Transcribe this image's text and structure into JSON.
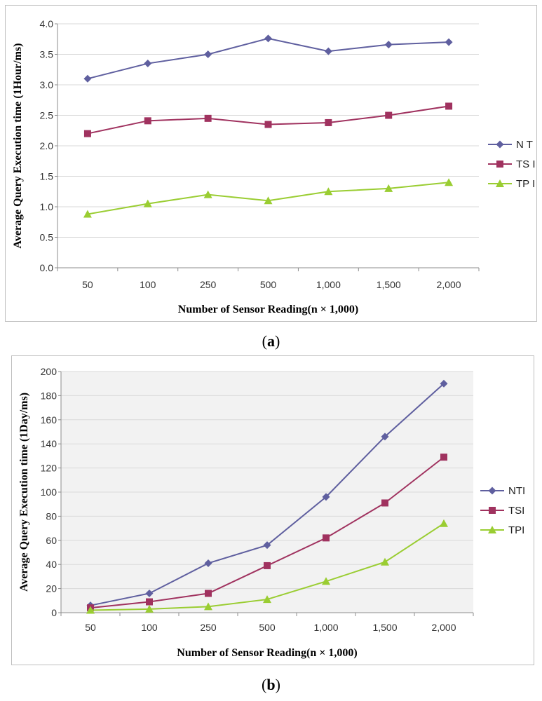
{
  "figure": {
    "captions": [
      "(a)",
      "(b)"
    ],
    "caption_letters": [
      "a",
      "b"
    ]
  },
  "chart_data": [
    {
      "type": "line",
      "panel": "a",
      "title": "",
      "xlabel": "Number of Sensor Reading(n × 1,000)",
      "ylabel": "Average Query Execution time (1Hour/ms)",
      "categories": [
        "50",
        "100",
        "250",
        "500",
        "1,000",
        "1,500",
        "2,000"
      ],
      "ylim": [
        0,
        4.0
      ],
      "yticks": [
        "0.0",
        "0.5",
        "1.0",
        "1.5",
        "2.0",
        "2.5",
        "3.0",
        "3.5",
        "4.0"
      ],
      "grid": true,
      "legend": "right",
      "plot_bg": "#ffffff",
      "series": [
        {
          "name": "N T I",
          "marker": "diamond",
          "color": "#5F5F9F",
          "values": [
            3.1,
            3.35,
            3.5,
            3.76,
            3.55,
            3.66,
            3.7
          ]
        },
        {
          "name": "TS I",
          "marker": "square",
          "color": "#A0325F",
          "values": [
            2.2,
            2.41,
            2.45,
            2.35,
            2.38,
            2.5,
            2.65
          ]
        },
        {
          "name": "TP I",
          "marker": "triangle",
          "color": "#9ACD32",
          "values": [
            0.88,
            1.05,
            1.2,
            1.1,
            1.25,
            1.3,
            1.4
          ]
        }
      ]
    },
    {
      "type": "line",
      "panel": "b",
      "title": "",
      "xlabel": "Number of Sensor Reading(n × 1,000)",
      "ylabel": "Average Query Execution time (1Day/ms)",
      "categories": [
        "50",
        "100",
        "250",
        "500",
        "1,000",
        "1,500",
        "2,000"
      ],
      "ylim": [
        0,
        200
      ],
      "yticks": [
        "0",
        "20",
        "40",
        "60",
        "80",
        "100",
        "120",
        "140",
        "160",
        "180",
        "200"
      ],
      "grid": true,
      "legend": "right",
      "plot_bg": "#f2f2f2",
      "series": [
        {
          "name": "NTI",
          "marker": "diamond",
          "color": "#5F5F9F",
          "values": [
            6,
            16,
            41,
            56,
            96,
            146,
            190
          ]
        },
        {
          "name": "TSI",
          "marker": "square",
          "color": "#A0325F",
          "values": [
            4,
            9,
            16,
            39,
            62,
            91,
            129
          ]
        },
        {
          "name": "TPI",
          "marker": "triangle",
          "color": "#9ACD32",
          "values": [
            2,
            3,
            5,
            11,
            26,
            42,
            74
          ]
        }
      ]
    }
  ]
}
